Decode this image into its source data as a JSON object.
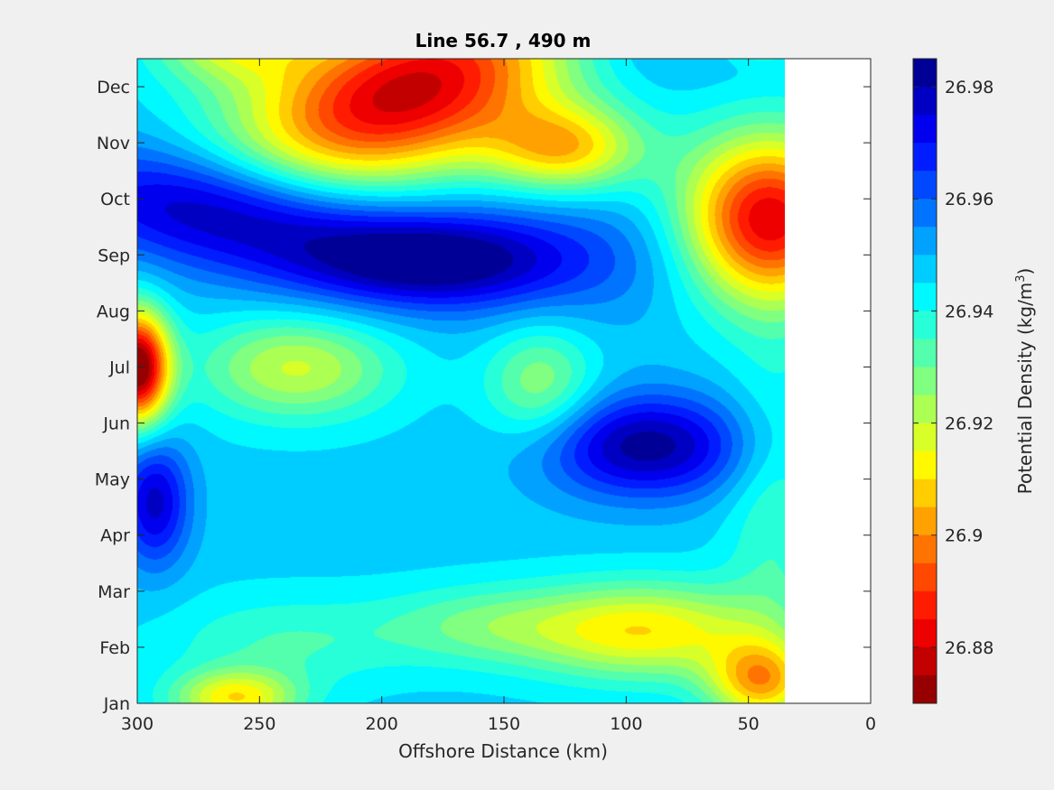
{
  "chart_data": {
    "type": "heatmap",
    "subtype": "filled-contour",
    "title": "Line 56.7 , 490 m",
    "xlabel": "Offshore Distance (km)",
    "x_direction": "reversed",
    "xlim": [
      300,
      0
    ],
    "xticks": [
      300,
      250,
      200,
      150,
      100,
      50,
      0
    ],
    "y_months": [
      "Jan",
      "Feb",
      "Mar",
      "Apr",
      "May",
      "Jun",
      "Jul",
      "Aug",
      "Sep",
      "Oct",
      "Nov",
      "Dec"
    ],
    "colorbar": {
      "label": "Potential Density (kg/m",
      "label_superscript": "3",
      "label_suffix": ")",
      "range": [
        26.87,
        26.985
      ],
      "ticks": [
        26.88,
        26.9,
        26.92,
        26.94,
        26.96,
        26.98
      ],
      "tick_labels": [
        "26.88",
        "26.9",
        "26.92",
        "26.94",
        "26.96",
        "26.98"
      ],
      "colormap": "jet",
      "levels": 23
    },
    "data_extent_km": [
      300,
      35
    ],
    "background_value": 26.947,
    "features": [
      {
        "x": 190,
        "y": 10.9,
        "sx": 48,
        "sy": 1.1,
        "tilt": -0.012,
        "amp": -0.07
      },
      {
        "x": 262,
        "y": 11.9,
        "sx": 22,
        "sy": 0.55,
        "amp": -0.03
      },
      {
        "x": 125,
        "y": 9.9,
        "sx": 22,
        "sy": 0.55,
        "amp": -0.038
      },
      {
        "x": 42,
        "y": 8.6,
        "sx": 25,
        "sy": 1.05,
        "amp": -0.07
      },
      {
        "x": 265,
        "y": 8.8,
        "sx": 48,
        "sy": 0.75,
        "tilt": 0.005,
        "amp": 0.038
      },
      {
        "x": 180,
        "y": 7.9,
        "sx": 38,
        "sy": 0.55,
        "amp": 0.03
      },
      {
        "x": 130,
        "y": 8.0,
        "sx": 70,
        "sy": 0.9,
        "amp": 0.012
      },
      {
        "x": 235,
        "y": 6.0,
        "sx": 28,
        "sy": 0.65,
        "amp": -0.028
      },
      {
        "x": 135,
        "y": 5.7,
        "sx": 16,
        "sy": 0.75,
        "amp": -0.022
      },
      {
        "x": 92,
        "y": 4.6,
        "sx": 30,
        "sy": 0.65,
        "amp": 0.036
      },
      {
        "x": 300,
        "y": 6.0,
        "sx": 9,
        "sy": 0.7,
        "amp": -0.08
      },
      {
        "x": 293,
        "y": 3.6,
        "sx": 10,
        "sy": 0.8,
        "amp": 0.03
      },
      {
        "x": 92,
        "y": 1.3,
        "sx": 35,
        "sy": 0.6,
        "amp": -0.036
      },
      {
        "x": 45,
        "y": 0.4,
        "sx": 15,
        "sy": 0.5,
        "amp": -0.04
      },
      {
        "x": 260,
        "y": 0.1,
        "sx": 18,
        "sy": 0.35,
        "amp": -0.035
      },
      {
        "x": 240,
        "y": 1.1,
        "sx": 35,
        "sy": 0.6,
        "amp": -0.012
      },
      {
        "x": 160,
        "y": 1.4,
        "sx": 30,
        "sy": 0.5,
        "amp": -0.015
      },
      {
        "x": 40,
        "y": 3.5,
        "sx": 14,
        "sy": 2.0,
        "amp": -0.012
      },
      {
        "x": 100,
        "y": 11.9,
        "sx": 30,
        "sy": 0.7,
        "amp": 0.01
      },
      {
        "x": 45,
        "y": 12.0,
        "sx": 10,
        "sy": 0.3,
        "amp": -0.03
      }
    ]
  }
}
